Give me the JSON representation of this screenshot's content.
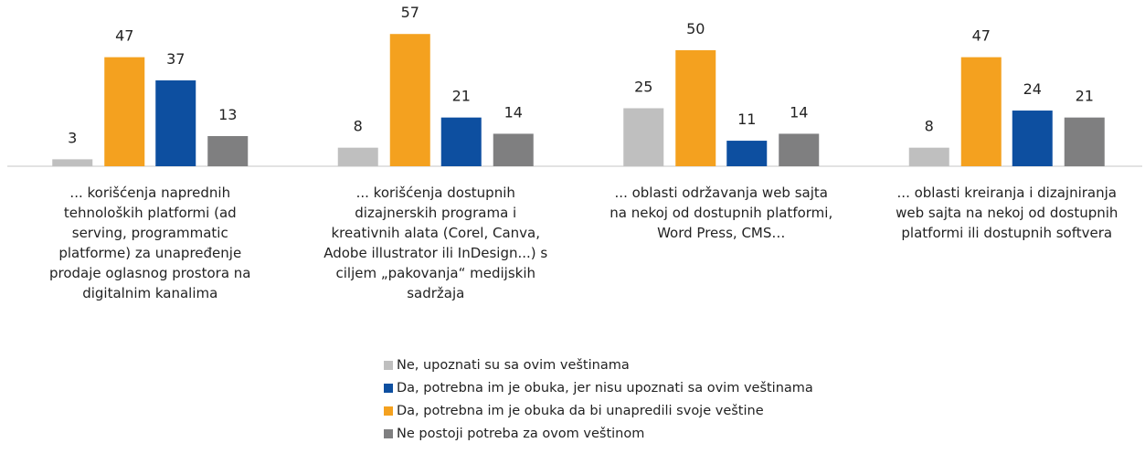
{
  "chart_data": {
    "type": "bar",
    "categories": [
      "... korišćenja naprednih tehnoloških platformi (ad serving, programmatic platforme) za unapređenje prodaje oglasnog prostora na digitalnim kanalima",
      "... korišćenja dostupnih dizajnerskih programa i kreativnih alata (Corel, Canva, Adobe illustrator ili InDesign...) s ciljem „pakovanja“ medijskih sadržaja",
      "... oblasti održavanja web sajta na nekoj od dostupnih platformi, Word Press, CMS…",
      "... oblasti kreiranja i dizajniranja web sajta na nekoj od dostupnih platformi ili dostupnih softvera"
    ],
    "series": [
      {
        "name": "Ne, upoznati su sa ovim veštinama",
        "color": "#bfbfbf",
        "values": [
          3,
          8,
          25,
          8
        ]
      },
      {
        "name": "Da, potrebna im je obuka, jer nisu upoznati sa ovim veštinama",
        "color": "#0d4fa0",
        "values": [
          37,
          21,
          11,
          24
        ]
      },
      {
        "name": "Da, potrebna im je obuka da bi unapredili svoje veštine",
        "color": "#f4a11f",
        "values": [
          47,
          57,
          50,
          47
        ]
      },
      {
        "name": "Ne postoji potreba za ovom veštinom",
        "color": "#7f7f80",
        "values": [
          13,
          14,
          14,
          21
        ]
      }
    ]
  }
}
